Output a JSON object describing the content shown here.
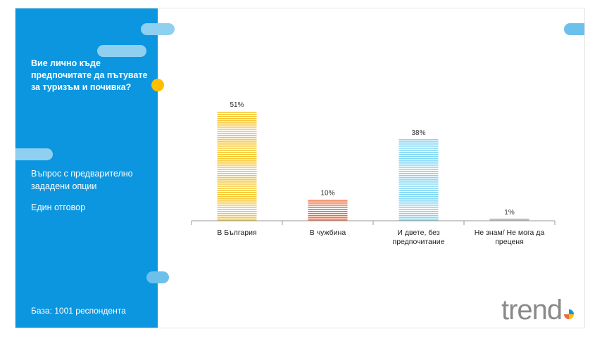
{
  "sidebar": {
    "question": "Вие лично къде предпочитате да пътувате за туризъм и почивка?",
    "note_1": "Въпрос с предварително зададени опции",
    "note_2": "Един отговор",
    "base": "База:  1001 респондента"
  },
  "logo": {
    "text": "trend"
  },
  "colors": {
    "sidebar": "#0c96df",
    "accent_dot": "#ffbf00",
    "bar_colors": [
      "#f7c531",
      "#ee6b3c",
      "#7fd6f4",
      "#bdbdbd"
    ]
  },
  "chart_data": {
    "type": "bar",
    "categories": [
      "В България",
      "В чужбина",
      "И двете, без предпочитание",
      "Не знам/ Не мога да преценя"
    ],
    "category_lines": [
      [
        "В България"
      ],
      [
        "В чужбина"
      ],
      [
        "И двете, без",
        "предпочитание"
      ],
      [
        "Не знам/ Не мога да",
        "преценя"
      ]
    ],
    "values": [
      51,
      10,
      38,
      1
    ],
    "data_labels": [
      "51%",
      "10%",
      "38%",
      "1%"
    ],
    "ylim": [
      0,
      60
    ],
    "grid": false,
    "legend": "none"
  }
}
